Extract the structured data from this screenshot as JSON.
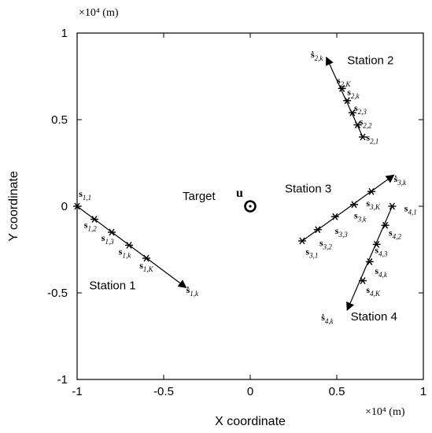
{
  "chart_data": {
    "type": "scatter",
    "title": "",
    "xlabel": "X coordinate",
    "ylabel": "Y coordinate",
    "x_scale_label": "×10⁴ (m)",
    "y_scale_label": "×10⁴ (m)",
    "xlim": [
      -1,
      1
    ],
    "ylim": [
      -1,
      1
    ],
    "xticks": [
      "-1",
      "-0.5",
      "0",
      "0.5",
      "1"
    ],
    "yticks": [
      "-1",
      "-0.5",
      "0",
      "0.5",
      "1"
    ],
    "target": {
      "label": "Target",
      "symbol": "u",
      "x": 0,
      "y": 0
    },
    "stations": [
      {
        "name": "Station 1",
        "label_pos": [
          -0.93,
          -0.48
        ],
        "points": [
          [
            -1.0,
            0.0
          ],
          [
            -0.9,
            -0.075
          ],
          [
            -0.8,
            -0.15
          ],
          [
            -0.7,
            -0.225
          ],
          [
            -0.6,
            -0.3
          ]
        ],
        "arrow_end": [
          -0.37,
          -0.47
        ],
        "labels": [
          {
            "base": "s",
            "sub": "1,1",
            "x": -0.99,
            "y": 0.055
          },
          {
            "base": "s",
            "sub": "1,2",
            "x": -0.96,
            "y": -0.125
          },
          {
            "base": "s",
            "sub": "1,3",
            "x": -0.86,
            "y": -0.2
          },
          {
            "base": "s",
            "sub": "1,k",
            "x": -0.76,
            "y": -0.28
          },
          {
            "base": "s",
            "sub": "1,K",
            "x": -0.64,
            "y": -0.36
          },
          {
            "base": "ṡ",
            "sub": "1,k",
            "x": -0.37,
            "y": -0.5
          }
        ]
      },
      {
        "name": "Station 2",
        "label_pos": [
          0.56,
          0.82
        ],
        "points": [
          [
            0.65,
            0.4
          ],
          [
            0.62,
            0.47
          ],
          [
            0.59,
            0.54
          ],
          [
            0.56,
            0.61
          ],
          [
            0.53,
            0.68
          ]
        ],
        "arrow_end": [
          0.44,
          0.86
        ],
        "labels": [
          {
            "base": "ṡ",
            "sub": "2,k",
            "x": 0.35,
            "y": 0.86
          },
          {
            "base": "s",
            "sub": "2,K",
            "x": 0.5,
            "y": 0.71
          },
          {
            "base": "s",
            "sub": "2,k",
            "x": 0.56,
            "y": 0.64
          },
          {
            "base": "s",
            "sub": "2,3",
            "x": 0.6,
            "y": 0.55
          },
          {
            "base": "s",
            "sub": "2,2",
            "x": 0.63,
            "y": 0.47
          },
          {
            "base": "s",
            "sub": "2,1",
            "x": 0.67,
            "y": 0.38
          }
        ]
      },
      {
        "name": "Station 3",
        "label_pos": [
          0.2,
          0.08
        ],
        "points": [
          [
            0.3,
            -0.2
          ],
          [
            0.39,
            -0.135
          ],
          [
            0.49,
            -0.06
          ],
          [
            0.6,
            0.01
          ],
          [
            0.7,
            0.085
          ]
        ],
        "arrow_end": [
          0.83,
          0.18
        ],
        "labels": [
          {
            "base": "ṡ",
            "sub": "3,k",
            "x": 0.83,
            "y": 0.14
          },
          {
            "base": "s",
            "sub": "3,K",
            "x": 0.67,
            "y": 0.0
          },
          {
            "base": "s",
            "sub": "3,k",
            "x": 0.6,
            "y": -0.07
          },
          {
            "base": "s",
            "sub": "3,3",
            "x": 0.49,
            "y": -0.16
          },
          {
            "base": "s",
            "sub": "3,2",
            "x": 0.4,
            "y": -0.23
          },
          {
            "base": "s",
            "sub": "3,1",
            "x": 0.32,
            "y": -0.28
          }
        ]
      },
      {
        "name": "Station 4",
        "label_pos": [
          0.58,
          -0.66
        ],
        "points": [
          [
            0.82,
            0.0
          ],
          [
            0.78,
            -0.11
          ],
          [
            0.73,
            -0.22
          ],
          [
            0.69,
            -0.32
          ],
          [
            0.65,
            -0.43
          ]
        ],
        "arrow_end": [
          0.56,
          -0.6
        ],
        "labels": [
          {
            "base": "s",
            "sub": "4,1",
            "x": 0.89,
            "y": -0.03
          },
          {
            "base": "s",
            "sub": "4,2",
            "x": 0.8,
            "y": -0.17
          },
          {
            "base": "s",
            "sub": "4,3",
            "x": 0.72,
            "y": -0.27
          },
          {
            "base": "s",
            "sub": "4,k",
            "x": 0.72,
            "y": -0.39
          },
          {
            "base": "s",
            "sub": "4,K",
            "x": 0.67,
            "y": -0.5
          },
          {
            "base": "ṡ",
            "sub": "4,k",
            "x": 0.41,
            "y": -0.66
          }
        ]
      }
    ]
  }
}
